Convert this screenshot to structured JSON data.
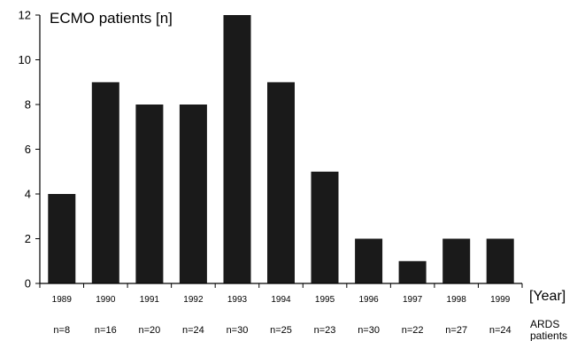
{
  "chart_data": {
    "type": "bar",
    "ylabel": "ECMO patients [n]",
    "xlabel": "[Year]",
    "categories": [
      "1989",
      "1990",
      "1991",
      "1992",
      "1993",
      "1994",
      "1995",
      "1996",
      "1997",
      "1998",
      "1999"
    ],
    "values": [
      4,
      9,
      8,
      8,
      12,
      9,
      5,
      2,
      1,
      2,
      2
    ],
    "ylim": [
      0,
      12
    ],
    "yticks": [
      "0",
      "2",
      "4",
      "6",
      "8",
      "10",
      "12"
    ],
    "ards_counts": [
      "n=8",
      "n=16",
      "n=20",
      "n=24",
      "n=30",
      "n=25",
      "n=23",
      "n=30",
      "n=22",
      "n=27",
      "n=24"
    ],
    "ards_label_line1": "ARDS",
    "ards_label_line2": "patients",
    "grid": false,
    "legend": "none"
  }
}
